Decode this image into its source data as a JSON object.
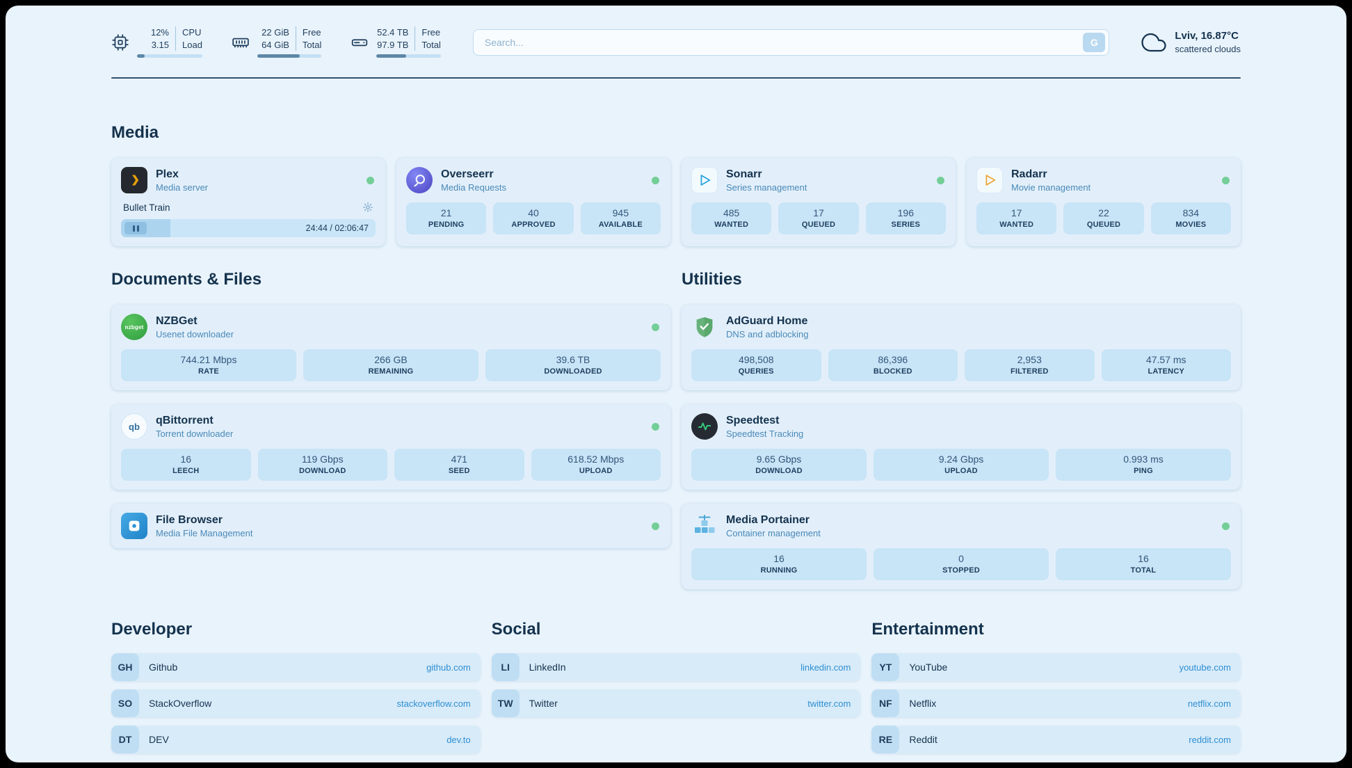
{
  "topbar": {
    "cpu": {
      "value_top": "12%",
      "value_bottom": "3.15",
      "label_top": "CPU",
      "label_bottom": "Load",
      "progress_pct": 12
    },
    "ram": {
      "value_top": "22 GiB",
      "value_bottom": "64 GiB",
      "label_top": "Free",
      "label_bottom": "Total",
      "progress_pct": 66
    },
    "disk": {
      "value_top": "52.4 TB",
      "value_bottom": "97.9 TB",
      "label_top": "Free",
      "label_bottom": "Total",
      "progress_pct": 46
    },
    "search": {
      "placeholder": "Search...",
      "button_label": "G"
    },
    "weather": {
      "location": "Lviv, 16.87°C",
      "condition": "scattered clouds"
    }
  },
  "media": {
    "heading": "Media",
    "plex": {
      "name": "Plex",
      "subtitle": "Media server",
      "now_playing": "Bullet Train",
      "time_text": "24:44 / 02:06:47",
      "progress_pct": 19.5
    },
    "overseerr": {
      "name": "Overseerr",
      "subtitle": "Media Requests",
      "stats": [
        {
          "value": "21",
          "label": "PENDING"
        },
        {
          "value": "40",
          "label": "APPROVED"
        },
        {
          "value": "945",
          "label": "AVAILABLE"
        }
      ]
    },
    "sonarr": {
      "name": "Sonarr",
      "subtitle": "Series management",
      "stats": [
        {
          "value": "485",
          "label": "WANTED"
        },
        {
          "value": "17",
          "label": "QUEUED"
        },
        {
          "value": "196",
          "label": "SERIES"
        }
      ]
    },
    "radarr": {
      "name": "Radarr",
      "subtitle": "Movie management",
      "stats": [
        {
          "value": "17",
          "label": "WANTED"
        },
        {
          "value": "22",
          "label": "QUEUED"
        },
        {
          "value": "834",
          "label": "MOVIES"
        }
      ]
    }
  },
  "documents": {
    "heading": "Documents & Files",
    "nzbget": {
      "name": "NZBGet",
      "subtitle": "Usenet downloader",
      "icon_text": "nzbget",
      "stats": [
        {
          "value": "744.21 Mbps",
          "label": "RATE"
        },
        {
          "value": "266 GB",
          "label": "REMAINING"
        },
        {
          "value": "39.6 TB",
          "label": "DOWNLOADED"
        }
      ]
    },
    "qbittorrent": {
      "name": "qBittorrent",
      "subtitle": "Torrent downloader",
      "icon_text": "qb",
      "stats": [
        {
          "value": "16",
          "label": "LEECH"
        },
        {
          "value": "119 Gbps",
          "label": "DOWNLOAD"
        },
        {
          "value": "471",
          "label": "SEED"
        },
        {
          "value": "618.52 Mbps",
          "label": "UPLOAD"
        }
      ]
    },
    "filebrowser": {
      "name": "File Browser",
      "subtitle": "Media File Management"
    }
  },
  "utilities": {
    "heading": "Utilities",
    "adguard": {
      "name": "AdGuard Home",
      "subtitle": "DNS and adblocking",
      "stats": [
        {
          "value": "498,508",
          "label": "QUERIES"
        },
        {
          "value": "86,396",
          "label": "BLOCKED"
        },
        {
          "value": "2,953",
          "label": "FILTERED"
        },
        {
          "value": "47.57 ms",
          "label": "LATENCY"
        }
      ]
    },
    "speedtest": {
      "name": "Speedtest",
      "subtitle": "Speedtest Tracking",
      "stats": [
        {
          "value": "9.65 Gbps",
          "label": "DOWNLOAD"
        },
        {
          "value": "9.24 Gbps",
          "label": "UPLOAD"
        },
        {
          "value": "0.993 ms",
          "label": "PING"
        }
      ]
    },
    "portainer": {
      "name": "Media Portainer",
      "subtitle": "Container management",
      "stats": [
        {
          "value": "16",
          "label": "RUNNING"
        },
        {
          "value": "0",
          "label": "STOPPED"
        },
        {
          "value": "16",
          "label": "TOTAL"
        }
      ]
    }
  },
  "bookmarks": {
    "developer": {
      "heading": "Developer",
      "items": [
        {
          "abbr": "GH",
          "name": "Github",
          "url": "github.com"
        },
        {
          "abbr": "SO",
          "name": "StackOverflow",
          "url": "stackoverflow.com"
        },
        {
          "abbr": "DT",
          "name": "DEV",
          "url": "dev.to"
        }
      ]
    },
    "social": {
      "heading": "Social",
      "items": [
        {
          "abbr": "LI",
          "name": "LinkedIn",
          "url": "linkedin.com"
        },
        {
          "abbr": "TW",
          "name": "Twitter",
          "url": "twitter.com"
        }
      ]
    },
    "entertainment": {
      "heading": "Entertainment",
      "items": [
        {
          "abbr": "YT",
          "name": "YouTube",
          "url": "youtube.com"
        },
        {
          "abbr": "NF",
          "name": "Netflix",
          "url": "netflix.com"
        },
        {
          "abbr": "RE",
          "name": "Reddit",
          "url": "reddit.com"
        }
      ]
    }
  },
  "colors": {
    "status_online": "#74ce97",
    "accent_link": "#2e8fd2",
    "page_background": "#e9f3fb",
    "tile_background": "#c8e4f7"
  }
}
